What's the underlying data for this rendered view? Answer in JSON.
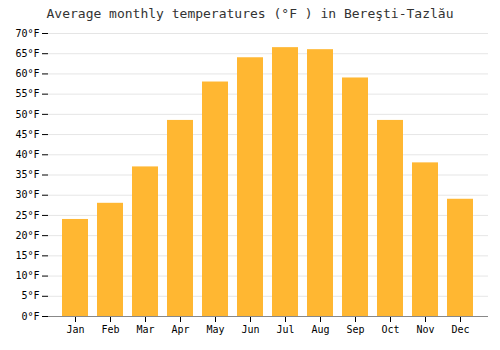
{
  "chart_data": {
    "type": "bar",
    "title": "Average monthly temperatures (°F ) in Bereşti-Tazlău",
    "categories": [
      "Jan",
      "Feb",
      "Mar",
      "Apr",
      "May",
      "Jun",
      "Jul",
      "Aug",
      "Sep",
      "Oct",
      "Nov",
      "Dec"
    ],
    "values": [
      24,
      28,
      37,
      48.5,
      58,
      64,
      66.5,
      66,
      59,
      48.5,
      38,
      29
    ],
    "color": "#FFB732",
    "ylim": [
      0,
      70
    ],
    "yticks": [
      {
        "value": 0,
        "label": "0°F"
      },
      {
        "value": 5,
        "label": "5°F"
      },
      {
        "value": 10,
        "label": "10°F"
      },
      {
        "value": 15,
        "label": "15°F"
      },
      {
        "value": 20,
        "label": "20°F"
      },
      {
        "value": 25,
        "label": "25°F"
      },
      {
        "value": 30,
        "label": "30°F"
      },
      {
        "value": 35,
        "label": "35°F"
      },
      {
        "value": 40,
        "label": "40°F"
      },
      {
        "value": 45,
        "label": "45°F"
      },
      {
        "value": 50,
        "label": "50°F"
      },
      {
        "value": 55,
        "label": "55°F"
      },
      {
        "value": 60,
        "label": "60°F"
      },
      {
        "value": 65,
        "label": "65°F"
      },
      {
        "value": 70,
        "label": "70°F"
      }
    ],
    "grid": true
  }
}
